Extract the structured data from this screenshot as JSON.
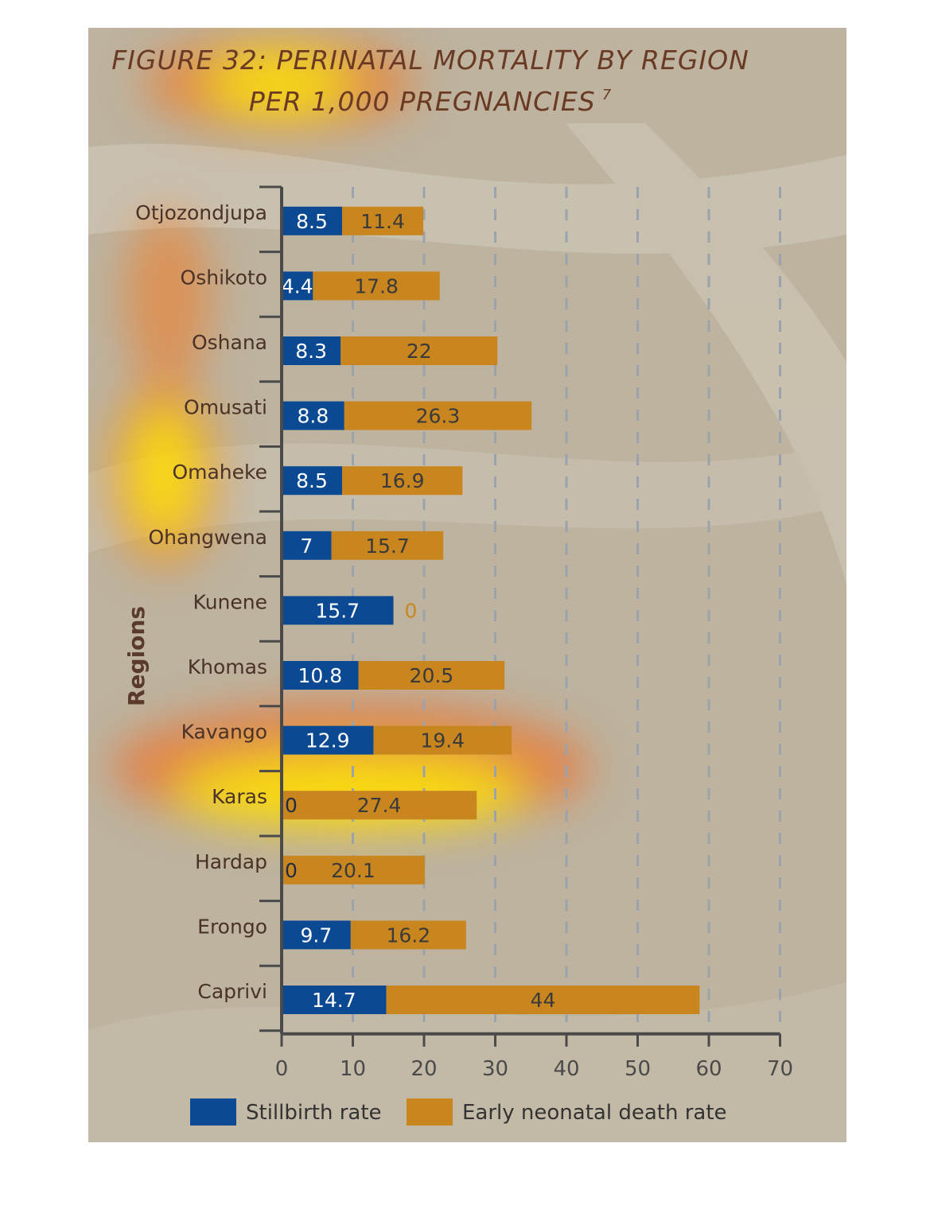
{
  "title_line1": "FIGURE 32: PERINATAL MORTALITY BY REGION",
  "title_line2": "PER 1,000 PREGNANCIES",
  "title_sup": "7",
  "colors": {
    "stillbirth": "#0b4a93",
    "neonatal": "#c9861e",
    "panel_bg": "#bdb39f"
  },
  "chart_data": {
    "type": "bar",
    "orientation": "horizontal",
    "stacked": true,
    "ylabel": "Regions",
    "xlim": [
      0,
      70
    ],
    "xticks": [
      0,
      10,
      20,
      30,
      40,
      50,
      60,
      70
    ],
    "grid": "vertical-dashed",
    "legend_position": "bottom",
    "categories": [
      "Otjozondjupa",
      "Oshikoto",
      "Oshana",
      "Omusati",
      "Omaheke",
      "Ohangwena",
      "Kunene",
      "Khomas",
      "Kavango",
      "Karas",
      "Hardap",
      "Erongo",
      "Caprivi"
    ],
    "series": [
      {
        "name": "Stillbirth rate",
        "values": [
          8.5,
          4.4,
          8.3,
          8.8,
          8.5,
          7,
          15.7,
          10.8,
          12.9,
          0,
          0,
          9.7,
          14.7
        ]
      },
      {
        "name": "Early neonatal death rate",
        "values": [
          11.4,
          17.8,
          22,
          26.3,
          16.9,
          15.7,
          0,
          20.5,
          19.4,
          27.4,
          20.1,
          16.2,
          44
        ]
      }
    ]
  }
}
